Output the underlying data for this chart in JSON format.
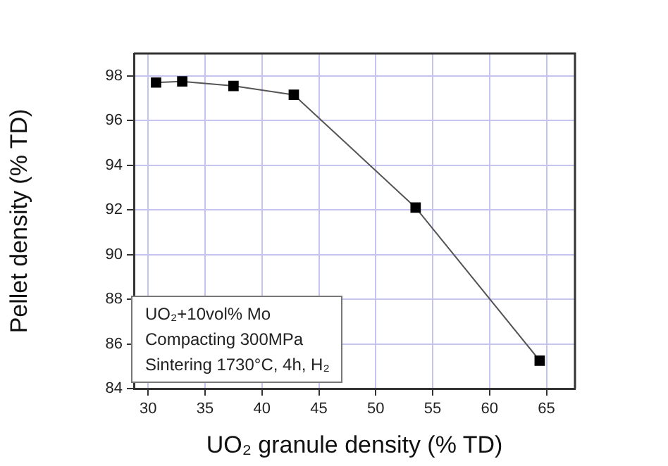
{
  "chart_data": {
    "type": "line",
    "xlabel": "UO₂ granule density (% TD)",
    "ylabel": "Pellet density (% TD)",
    "x": [
      30.7,
      33.0,
      37.5,
      42.8,
      53.5,
      64.4
    ],
    "series": [
      {
        "color": "#000000",
        "values": [
          97.7,
          97.75,
          97.55,
          97.15,
          92.1,
          85.25
        ]
      }
    ],
    "xlim": [
      28.75,
      67.5
    ],
    "xticks": [
      30,
      35,
      40,
      45,
      50,
      55,
      60,
      65
    ],
    "ylim": [
      84,
      99
    ],
    "yticks": [
      84,
      86,
      88,
      90,
      92,
      94,
      96,
      98
    ],
    "grid": true,
    "legend": false,
    "marker": "square",
    "line_style": "solid",
    "annotations": [
      "UO₂+10vol% Mo",
      "Compacting 300MPa",
      "Sintering 1730°C, 4h, H₂"
    ]
  }
}
